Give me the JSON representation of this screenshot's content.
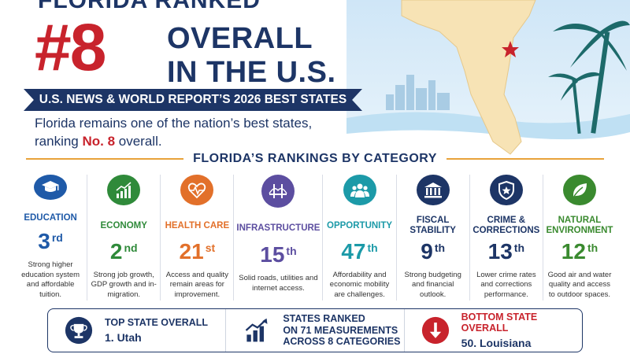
{
  "header": {
    "top_text": "FLORIDA RANKED",
    "rank": "#8",
    "line1": "OVERALL",
    "line2": "IN THE U.S.",
    "banner": "U.S. NEWS & WORLD REPORT’S 2026 BEST STATES",
    "intro_prefix": "Florida remains one of the nation’s best states,",
    "intro_ranking": "ranking ",
    "intro_highlight": "No. 8",
    "intro_suffix": " overall."
  },
  "section_title": "FLORIDA’S RANKINGS BY CATEGORY",
  "categories": [
    {
      "label": "EDUCATION",
      "num": "3",
      "suffix": "rd",
      "desc": "Strong higher education system and affordable tuition.",
      "color": "#1f5aa8",
      "icon": "graduation-cap-icon"
    },
    {
      "label": "ECONOMY",
      "num": "2",
      "suffix": "nd",
      "desc": "Strong job growth, GDP growth and in-migration.",
      "color": "#2f8a3a",
      "icon": "growth-chart-icon"
    },
    {
      "label": "HEALTH CARE",
      "num": "21",
      "suffix": "st",
      "desc": "Access and quality remain areas for improvement.",
      "color": "#e2702a",
      "icon": "heartbeat-icon"
    },
    {
      "label": "INFRASTRUCTURE",
      "num": "15",
      "suffix": "th",
      "desc": "Solid roads, utilities and internet access.",
      "color": "#5c4ea0",
      "icon": "bridge-icon"
    },
    {
      "label": "OPPORTUNITY",
      "num": "47",
      "suffix": "th",
      "desc": "Affordability and economic mobility are challenges.",
      "color": "#1c9aa8",
      "icon": "people-icon"
    },
    {
      "label": "FISCAL STABILITY",
      "num": "9",
      "suffix": "th",
      "desc": "Strong budgeting and financial outlook.",
      "color": "#1d3566",
      "icon": "bank-icon"
    },
    {
      "label": "CRIME & CORRECTIONS",
      "num": "13",
      "suffix": "th",
      "desc": "Lower crime rates and corrections performance.",
      "color": "#1d3566",
      "icon": "shield-star-icon"
    },
    {
      "label": "NATURAL ENVIRONMENT",
      "num": "12",
      "suffix": "th",
      "desc": "Good air and water quality and access to outdoor spaces.",
      "color": "#3a8a2f",
      "icon": "leaf-icon"
    }
  ],
  "bottom": {
    "top_state_title": "TOP STATE OVERALL",
    "top_state_value": "1. Utah",
    "ranked_line1": "STATES RANKED",
    "ranked_line2": "ON 71 MEASUREMENTS",
    "ranked_line3": "ACROSS 8 CATEGORIES",
    "bottom_state_title": "BOTTOM STATE OVERALL",
    "bottom_state_value": "50. Louisiana"
  },
  "colors": {
    "navy": "#1d3566",
    "red": "#c8232c",
    "accent": "#e8a23a"
  }
}
